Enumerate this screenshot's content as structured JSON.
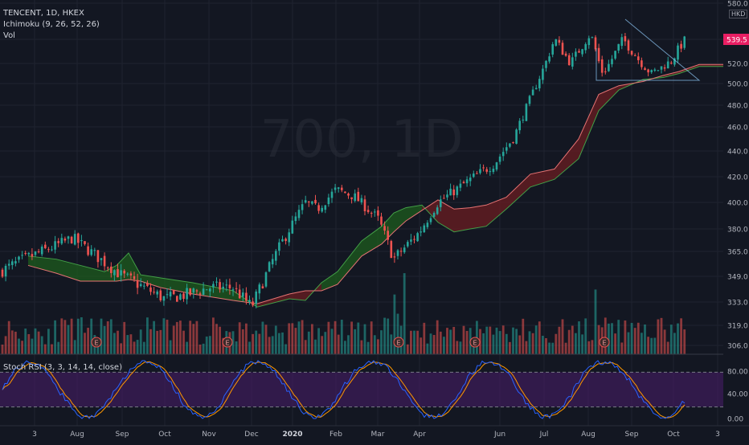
{
  "header": {
    "symbol": "TENCENT, 1D, HKEX",
    "indicator": "Ichimoku (9, 26, 52, 26)",
    "volume": "Vol",
    "watermark": "700, 1D",
    "currency": "HKD"
  },
  "oscillator": {
    "label": "Stoch RSI (3, 3, 14, 14, close)"
  },
  "colors": {
    "background": "#131722",
    "up": "#26a69a",
    "down": "#ef5350",
    "cloud_bull": "#1e5c1e",
    "cloud_bear": "#6b1e22",
    "stoch_k": "#2962ff",
    "stoch_d": "#ff9800",
    "stoch_band": "#4a1e6b"
  },
  "chart_data": {
    "type": "line",
    "ylim": [
      306,
      580
    ],
    "price_axis_ticks": [
      "580.0",
      "539.5",
      "520.0",
      "500.0",
      "480.0",
      "460.0",
      "440.0",
      "420.0",
      "400.0",
      "380.0",
      "365.0",
      "349.0",
      "333.0",
      "319.0",
      "306.0"
    ],
    "last_price": "539.5",
    "x_axis_ticks": [
      "3",
      "Aug",
      "Sep",
      "Oct",
      "Nov",
      "Dec",
      "2020",
      "Feb",
      "Mar",
      "Apr",
      "Jun",
      "Jul",
      "Aug",
      "Sep",
      "Oct",
      "3"
    ],
    "earnings_marker": "E",
    "earnings_count": 6,
    "price_path": [
      {
        "x": "3",
        "y": 352
      },
      {
        "x": "Jul",
        "y": 362
      },
      {
        "x": "Aug",
        "y": 372
      },
      {
        "x": "Aug",
        "y": 372
      },
      {
        "x": "Sep",
        "y": 350
      },
      {
        "x": "Oct",
        "y": 335
      },
      {
        "x": "Oct",
        "y": 338
      },
      {
        "x": "Nov",
        "y": 342
      },
      {
        "x": "Nov",
        "y": 342
      },
      {
        "x": "Dec",
        "y": 330
      },
      {
        "x": "Dec",
        "y": 360
      },
      {
        "x": "2020",
        "y": 400
      },
      {
        "x": "2020",
        "y": 395
      },
      {
        "x": "Feb",
        "y": 410
      },
      {
        "x": "Feb",
        "y": 405
      },
      {
        "x": "Mar",
        "y": 388
      },
      {
        "x": "Mar",
        "y": 360
      },
      {
        "x": "Apr",
        "y": 378
      },
      {
        "x": "Apr",
        "y": 400
      },
      {
        "x": "Apr",
        "y": 420
      },
      {
        "x": "Jun",
        "y": 430
      },
      {
        "x": "Jun",
        "y": 452
      },
      {
        "x": "Jun",
        "y": 495
      },
      {
        "x": "Jul",
        "y": 540
      },
      {
        "x": "Jul",
        "y": 520
      },
      {
        "x": "Aug",
        "y": 545
      },
      {
        "x": "Aug",
        "y": 510
      },
      {
        "x": "Sep",
        "y": 540
      },
      {
        "x": "Sep",
        "y": 510
      },
      {
        "x": "Oct",
        "y": 522
      },
      {
        "x": "Oct",
        "y": 539.5
      }
    ],
    "stoch_rsi": {
      "ylim": [
        0,
        100
      ],
      "ticks": [
        "80.00",
        "40.00",
        "0.00"
      ],
      "upper_band": 80,
      "lower_band": 20
    }
  }
}
